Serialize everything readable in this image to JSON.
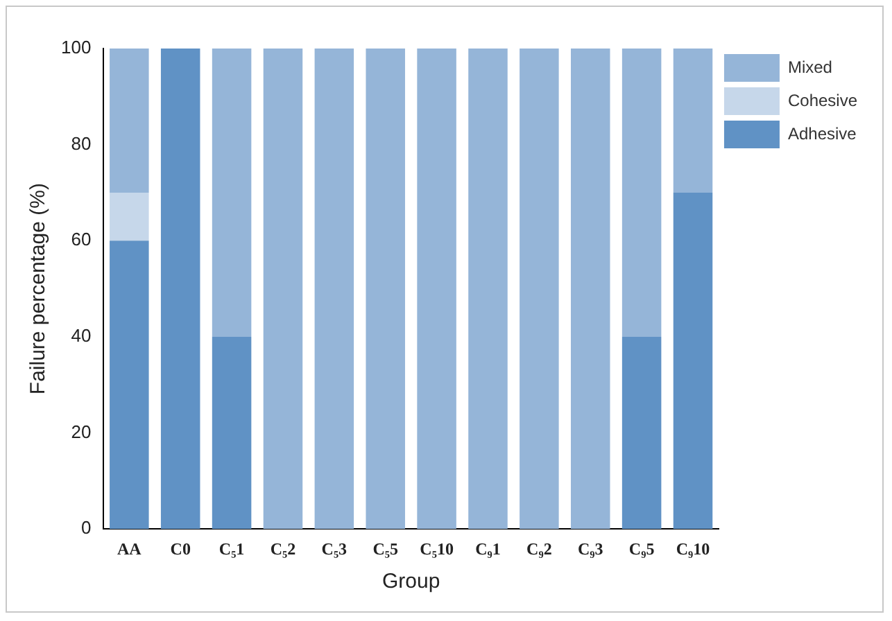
{
  "chart_data": {
    "type": "bar",
    "stacked": true,
    "xlabel": "Group",
    "ylabel": "Failure percentage (%)",
    "categories": [
      "AA",
      "C0",
      "C₅1",
      "C₅2",
      "C₅3",
      "C₅5",
      "C₅10",
      "C₉1",
      "C₉2",
      "C₉3",
      "C₉5",
      "C₉10"
    ],
    "series": [
      {
        "name": "Adhesive",
        "color": "#6092c5",
        "values": [
          60,
          100,
          40,
          0,
          0,
          0,
          0,
          0,
          0,
          0,
          40,
          70
        ]
      },
      {
        "name": "Cohesive",
        "color": "#c6d7ea",
        "values": [
          10,
          0,
          0,
          0,
          0,
          0,
          0,
          0,
          0,
          0,
          0,
          0
        ]
      },
      {
        "name": "Mixed",
        "color": "#95b5d8",
        "values": [
          30,
          0,
          60,
          100,
          100,
          100,
          100,
          100,
          100,
          100,
          60,
          30
        ]
      }
    ],
    "ylim": [
      0,
      100
    ],
    "yticks": [
      0,
      20,
      40,
      60,
      80,
      100
    ],
    "grid": false,
    "legend": "top right"
  }
}
